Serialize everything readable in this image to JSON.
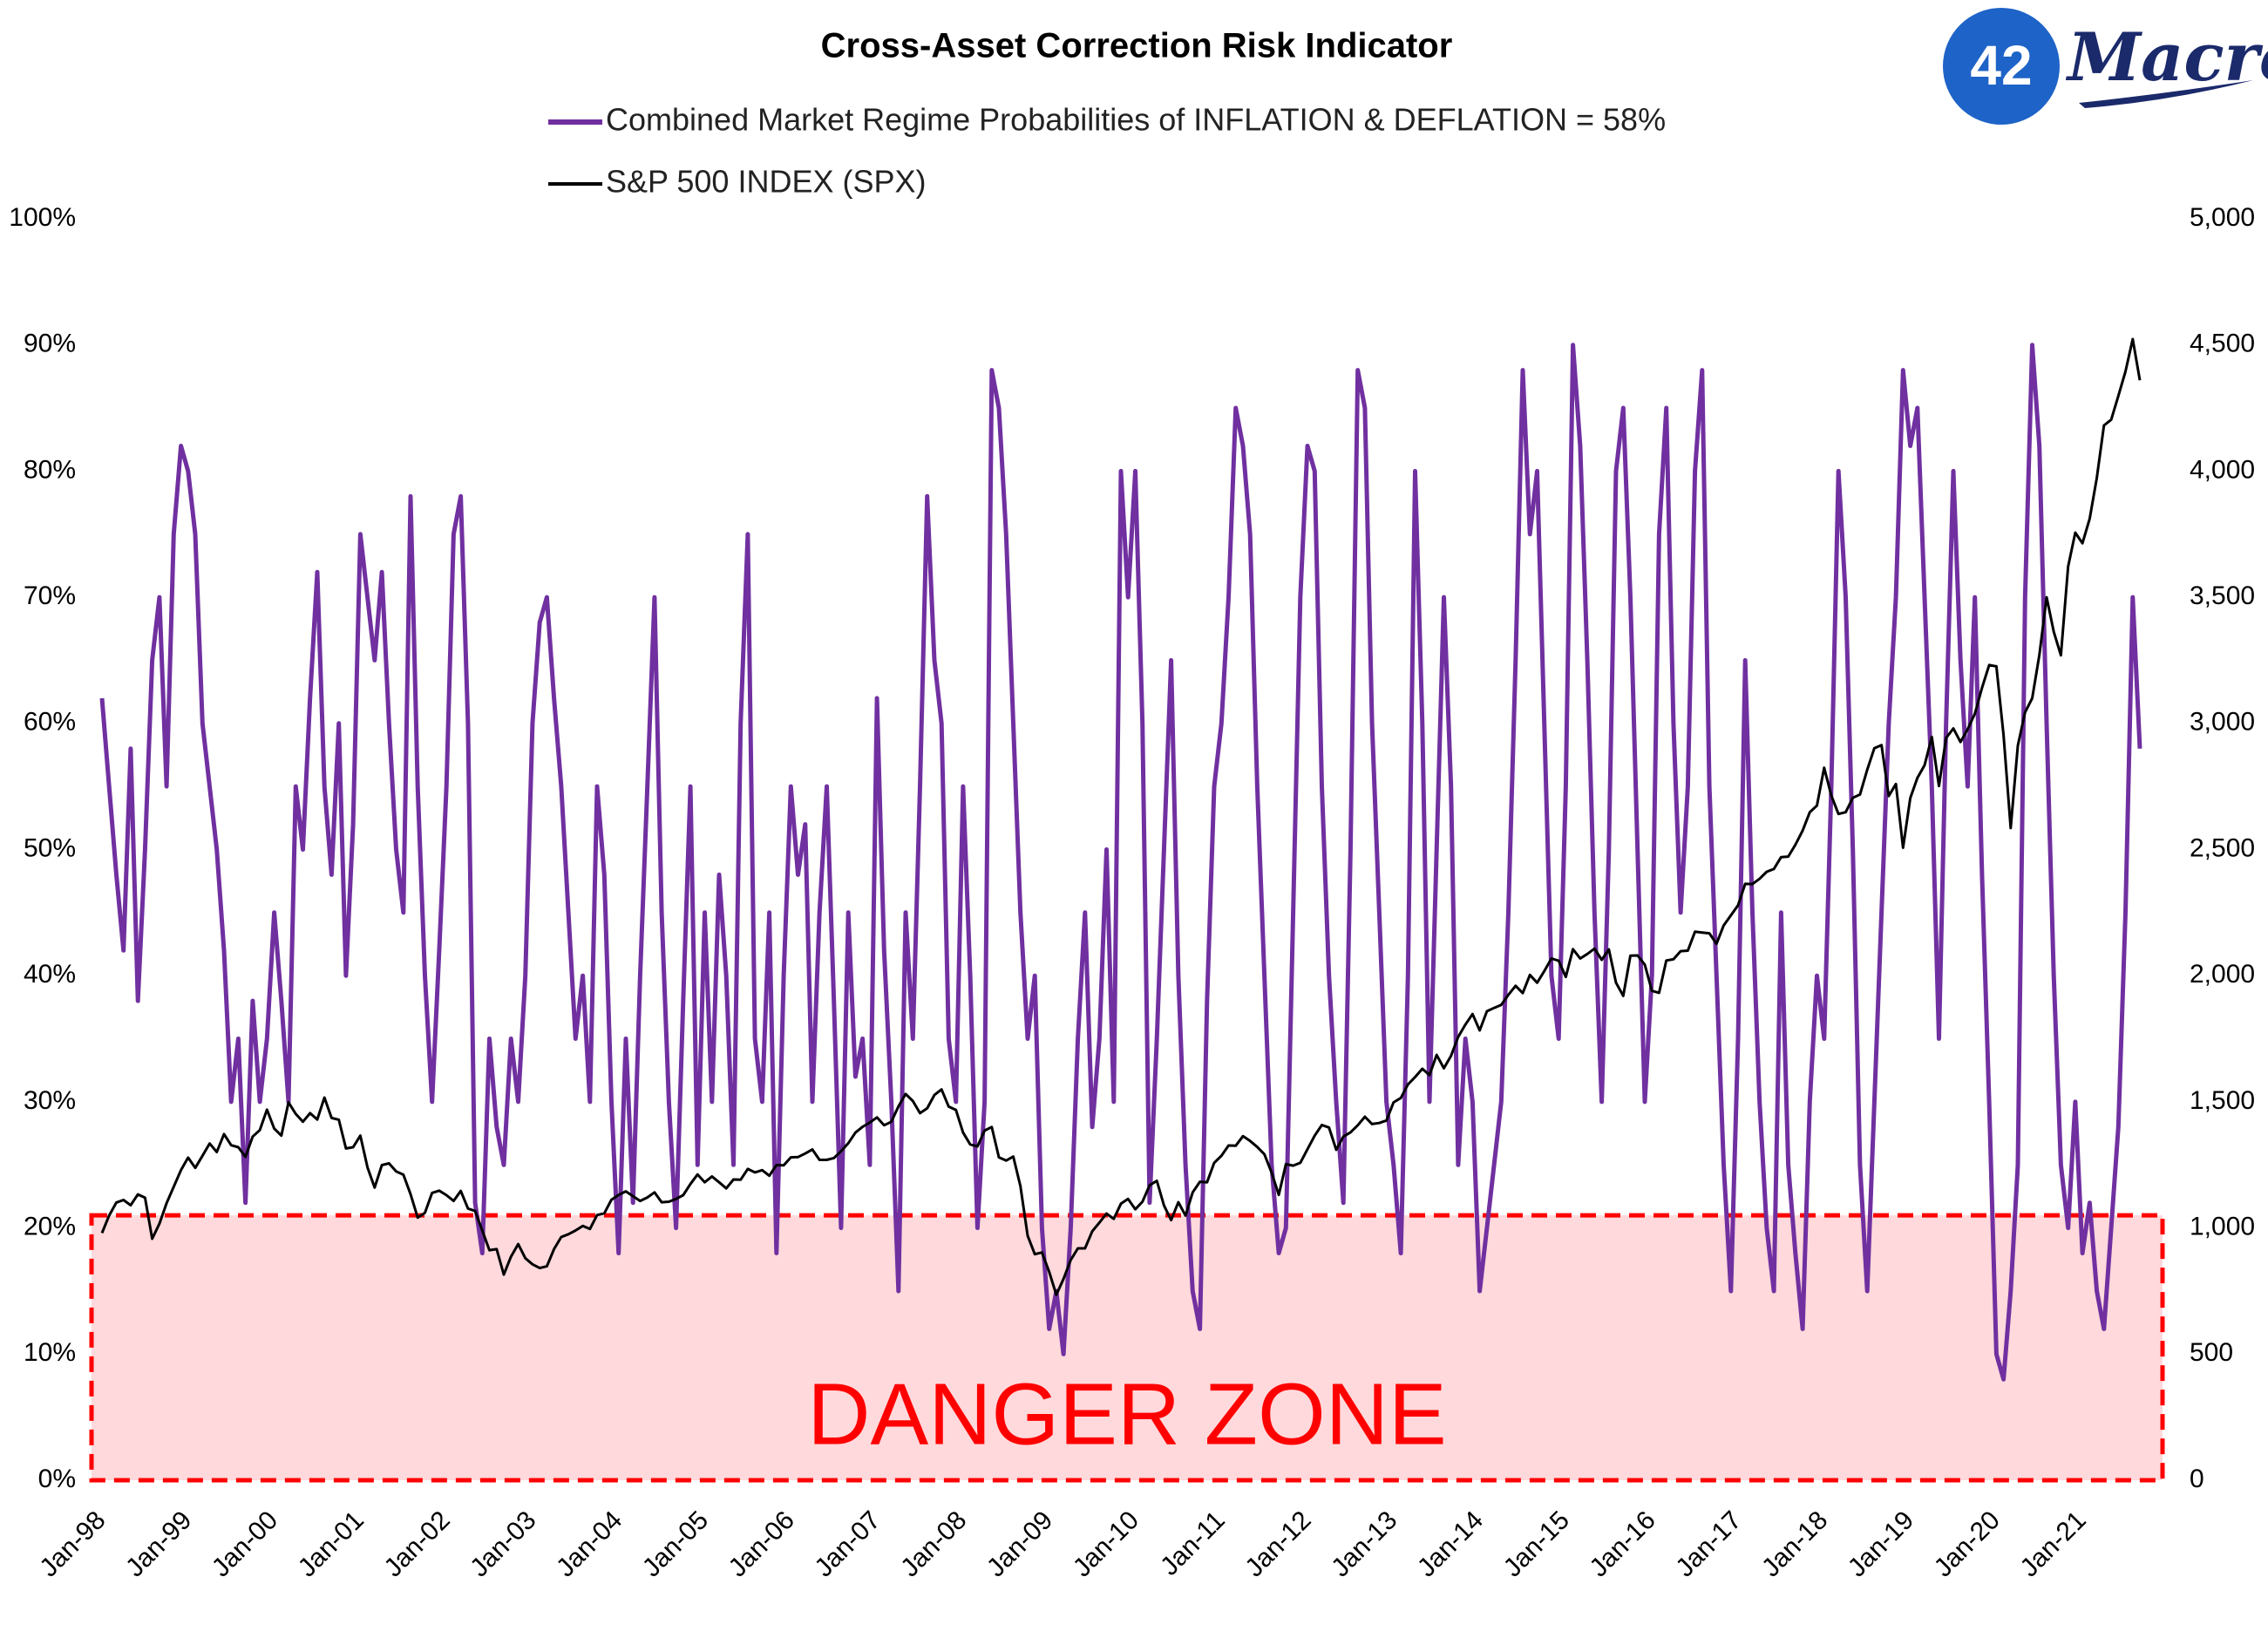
{
  "chart_data": {
    "type": "line",
    "title": "Cross-Asset Correction Risk Indicator",
    "logo": {
      "number": "42",
      "text": "Macro"
    },
    "danger_zone": {
      "label": "DANGER ZONE",
      "upper": 21,
      "color": "#ff0000",
      "fill": "#ffd9dc"
    },
    "categories": [
      "Jan-98",
      null,
      null,
      null,
      null,
      null,
      null,
      null,
      null,
      null,
      null,
      null,
      "Jan-99",
      null,
      null,
      null,
      null,
      null,
      null,
      null,
      null,
      null,
      null,
      null,
      "Jan-00",
      null,
      null,
      null,
      null,
      null,
      null,
      null,
      null,
      null,
      null,
      null,
      "Jan-01",
      null,
      null,
      null,
      null,
      null,
      null,
      null,
      null,
      null,
      null,
      null,
      "Jan-02",
      null,
      null,
      null,
      null,
      null,
      null,
      null,
      null,
      null,
      null,
      null,
      "Jan-03",
      null,
      null,
      null,
      null,
      null,
      null,
      null,
      null,
      null,
      null,
      null,
      "Jan-04",
      null,
      null,
      null,
      null,
      null,
      null,
      null,
      null,
      null,
      null,
      null,
      "Jan-05",
      null,
      null,
      null,
      null,
      null,
      null,
      null,
      null,
      null,
      null,
      null,
      "Jan-06",
      null,
      null,
      null,
      null,
      null,
      null,
      null,
      null,
      null,
      null,
      null,
      "Jan-07",
      null,
      null,
      null,
      null,
      null,
      null,
      null,
      null,
      null,
      null,
      null,
      "Jan-08",
      null,
      null,
      null,
      null,
      null,
      null,
      null,
      null,
      null,
      null,
      null,
      "Jan-09",
      null,
      null,
      null,
      null,
      null,
      null,
      null,
      null,
      null,
      null,
      null,
      "Jan-10",
      null,
      null,
      null,
      null,
      null,
      null,
      null,
      null,
      null,
      null,
      null,
      "Jan-11",
      null,
      null,
      null,
      null,
      null,
      null,
      null,
      null,
      null,
      null,
      null,
      "Jan-12",
      null,
      null,
      null,
      null,
      null,
      null,
      null,
      null,
      null,
      null,
      null,
      "Jan-13",
      null,
      null,
      null,
      null,
      null,
      null,
      null,
      null,
      null,
      null,
      null,
      "Jan-14",
      null,
      null,
      null,
      null,
      null,
      null,
      null,
      null,
      null,
      null,
      null,
      "Jan-15",
      null,
      null,
      null,
      null,
      null,
      null,
      null,
      null,
      null,
      null,
      null,
      "Jan-16",
      null,
      null,
      null,
      null,
      null,
      null,
      null,
      null,
      null,
      null,
      null,
      "Jan-17",
      null,
      null,
      null,
      null,
      null,
      null,
      null,
      null,
      null,
      null,
      null,
      "Jan-18",
      null,
      null,
      null,
      null,
      null,
      null,
      null,
      null,
      null,
      null,
      null,
      "Jan-19",
      null,
      null,
      null,
      null,
      null,
      null,
      null,
      null,
      null,
      null,
      null,
      "Jan-20",
      null,
      null,
      null,
      null,
      null,
      null,
      null,
      null,
      null,
      null,
      null,
      "Jan-21",
      null,
      null,
      null,
      null,
      null,
      null,
      null,
      null
    ],
    "series": [
      {
        "name": "Combined Market Regime Probabilities of INFLATION & DEFLATION = 58%",
        "color": "#7030a0",
        "axis": "y",
        "values": [
          62,
          55,
          48,
          42,
          58,
          38,
          50,
          65,
          70,
          55,
          75,
          82,
          80,
          75,
          60,
          55,
          50,
          42,
          30,
          35,
          22,
          38,
          30,
          35,
          45,
          38,
          30,
          55,
          50,
          62,
          72,
          55,
          48,
          60,
          40,
          52,
          75,
          70,
          65,
          72,
          60,
          50,
          45,
          78,
          55,
          40,
          30,
          42,
          55,
          75,
          78,
          60,
          22,
          18,
          35,
          28,
          25,
          35,
          30,
          40,
          60,
          68,
          70,
          62,
          55,
          45,
          35,
          40,
          30,
          55,
          48,
          30,
          18,
          35,
          22,
          40,
          55,
          70,
          45,
          30,
          20,
          38,
          55,
          25,
          45,
          30,
          48,
          40,
          25,
          60,
          75,
          35,
          30,
          45,
          18,
          40,
          55,
          48,
          52,
          30,
          45,
          55,
          38,
          20,
          45,
          32,
          35,
          25,
          62,
          42,
          30,
          15,
          45,
          35,
          55,
          78,
          65,
          60,
          35,
          30,
          55,
          40,
          20,
          30,
          88,
          85,
          75,
          60,
          45,
          35,
          40,
          20,
          12,
          15,
          10,
          20,
          35,
          45,
          28,
          35,
          50,
          30,
          80,
          70,
          80,
          60,
          22,
          35,
          50,
          65,
          40,
          25,
          15,
          12,
          38,
          55,
          60,
          70,
          85,
          82,
          75,
          55,
          40,
          25,
          18,
          20,
          45,
          70,
          82,
          80,
          55,
          40,
          30,
          22,
          50,
          88,
          85,
          60,
          45,
          30,
          25,
          18,
          40,
          80,
          60,
          30,
          50,
          70,
          55,
          25,
          35,
          30,
          15,
          20,
          25,
          30,
          45,
          65,
          88,
          75,
          80,
          60,
          40,
          35,
          55,
          90,
          82,
          65,
          45,
          30,
          50,
          80,
          85,
          70,
          50,
          30,
          40,
          75,
          85,
          60,
          45,
          55,
          80,
          88,
          55,
          40,
          25,
          15,
          35,
          65,
          45,
          30,
          20,
          15,
          45,
          25,
          18,
          12,
          30,
          40,
          35,
          55,
          80,
          70,
          50,
          25,
          15,
          30,
          45,
          60,
          70,
          88,
          82,
          85,
          70,
          55,
          35,
          60,
          80,
          65,
          55,
          70,
          48,
          30,
          10,
          8,
          15,
          25,
          70,
          90,
          82,
          60,
          40,
          25,
          20,
          30,
          18,
          22,
          15,
          12,
          20,
          28,
          45,
          70,
          58
        ]
      },
      {
        "name": "S&P 500 INDEX (SPX)",
        "color": "#000000",
        "axis": "y2",
        "values": [
          980,
          1049,
          1101,
          1111,
          1090,
          1133,
          1120,
          957,
          1017,
          1098,
          1163,
          1229,
          1279,
          1238,
          1286,
          1335,
          1301,
          1372,
          1328,
          1320,
          1282,
          1362,
          1388,
          1469,
          1394,
          1366,
          1498,
          1452,
          1421,
          1455,
          1430,
          1517,
          1436,
          1429,
          1315,
          1320,
          1366,
          1240,
          1160,
          1249,
          1256,
          1224,
          1211,
          1134,
          1041,
          1060,
          1139,
          1148,
          1130,
          1107,
          1147,
          1077,
          1067,
          990,
          912,
          916,
          815,
          886,
          936,
          880,
          856,
          841,
          848,
          916,
          964,
          975,
          990,
          1008,
          996,
          1051,
          1058,
          1112,
          1131,
          1145,
          1126,
          1107,
          1121,
          1141,
          1102,
          1104,
          1115,
          1130,
          1174,
          1212,
          1181,
          1204,
          1181,
          1157,
          1192,
          1191,
          1234,
          1220,
          1229,
          1207,
          1249,
          1248,
          1280,
          1281,
          1295,
          1311,
          1270,
          1270,
          1277,
          1304,
          1336,
          1378,
          1401,
          1418,
          1438,
          1407,
          1421,
          1482,
          1531,
          1503,
          1455,
          1474,
          1527,
          1549,
          1481,
          1468,
          1378,
          1331,
          1323,
          1386,
          1400,
          1280,
          1267,
          1283,
          1166,
          969,
          896,
          903,
          826,
          735,
          798,
          873,
          919,
          919,
          987,
          1021,
          1057,
          1036,
          1096,
          1115,
          1074,
          1104,
          1169,
          1187,
          1089,
          1031,
          1102,
          1049,
          1141,
          1183,
          1181,
          1258,
          1286,
          1327,
          1326,
          1364,
          1345,
          1321,
          1292,
          1219,
          1131,
          1253,
          1247,
          1258,
          1312,
          1366,
          1408,
          1398,
          1310,
          1362,
          1379,
          1407,
          1441,
          1412,
          1416,
          1426,
          1498,
          1515,
          1569,
          1598,
          1631,
          1606,
          1686,
          1633,
          1682,
          1757,
          1806,
          1848,
          1783,
          1859,
          1872,
          1884,
          1924,
          1960,
          1931,
          2003,
          1972,
          2018,
          2068,
          2059,
          1995,
          2105,
          2068,
          2086,
          2107,
          2063,
          2104,
          1972,
          1920,
          2079,
          2080,
          2044,
          1940,
          1932,
          2060,
          2065,
          2097,
          2099,
          2174,
          2171,
          2168,
          2126,
          2199,
          2239,
          2279,
          2364,
          2363,
          2384,
          2412,
          2423,
          2470,
          2472,
          2519,
          2575,
          2648,
          2674,
          2824,
          2714,
          2641,
          2648,
          2705,
          2718,
          2816,
          2902,
          2914,
          2712,
          2760,
          2507,
          2704,
          2784,
          2834,
          2946,
          2752,
          2942,
          2980,
          2926,
          2977,
          3038,
          3141,
          3231,
          3226,
          2954,
          2585,
          2912,
          3044,
          3100,
          3271,
          3500,
          3363,
          3270,
          3622,
          3756,
          3714,
          3811,
          3973,
          4181,
          4204,
          4298,
          4395,
          4523,
          4360
        ]
      }
    ],
    "ylim": [
      0,
      100
    ],
    "yticks": [
      {
        "value": 0,
        "label": "0%"
      },
      {
        "value": 10,
        "label": "10%"
      },
      {
        "value": 20,
        "label": "20%"
      },
      {
        "value": 30,
        "label": "30%"
      },
      {
        "value": 40,
        "label": "40%"
      },
      {
        "value": 50,
        "label": "50%"
      },
      {
        "value": 60,
        "label": "60%"
      },
      {
        "value": 70,
        "label": "70%"
      },
      {
        "value": 80,
        "label": "80%"
      },
      {
        "value": 90,
        "label": "90%"
      },
      {
        "value": 100,
        "label": "100%"
      }
    ],
    "y2lim": [
      0,
      5000
    ],
    "y2ticks": [
      0,
      500,
      {
        "value": 1000,
        "label": "1,000"
      },
      {
        "value": 1500,
        "label": "1,500"
      },
      {
        "value": 2000,
        "label": "2,000"
      },
      {
        "value": 2500,
        "label": "2,500"
      },
      {
        "value": 3000,
        "label": "3,000"
      },
      {
        "value": 3500,
        "label": "3,500"
      },
      {
        "value": 4000,
        "label": "4,000"
      },
      {
        "value": 4500,
        "label": "4,500"
      },
      {
        "value": 5000,
        "label": "5,000"
      }
    ],
    "grid": false,
    "legend": "top"
  }
}
